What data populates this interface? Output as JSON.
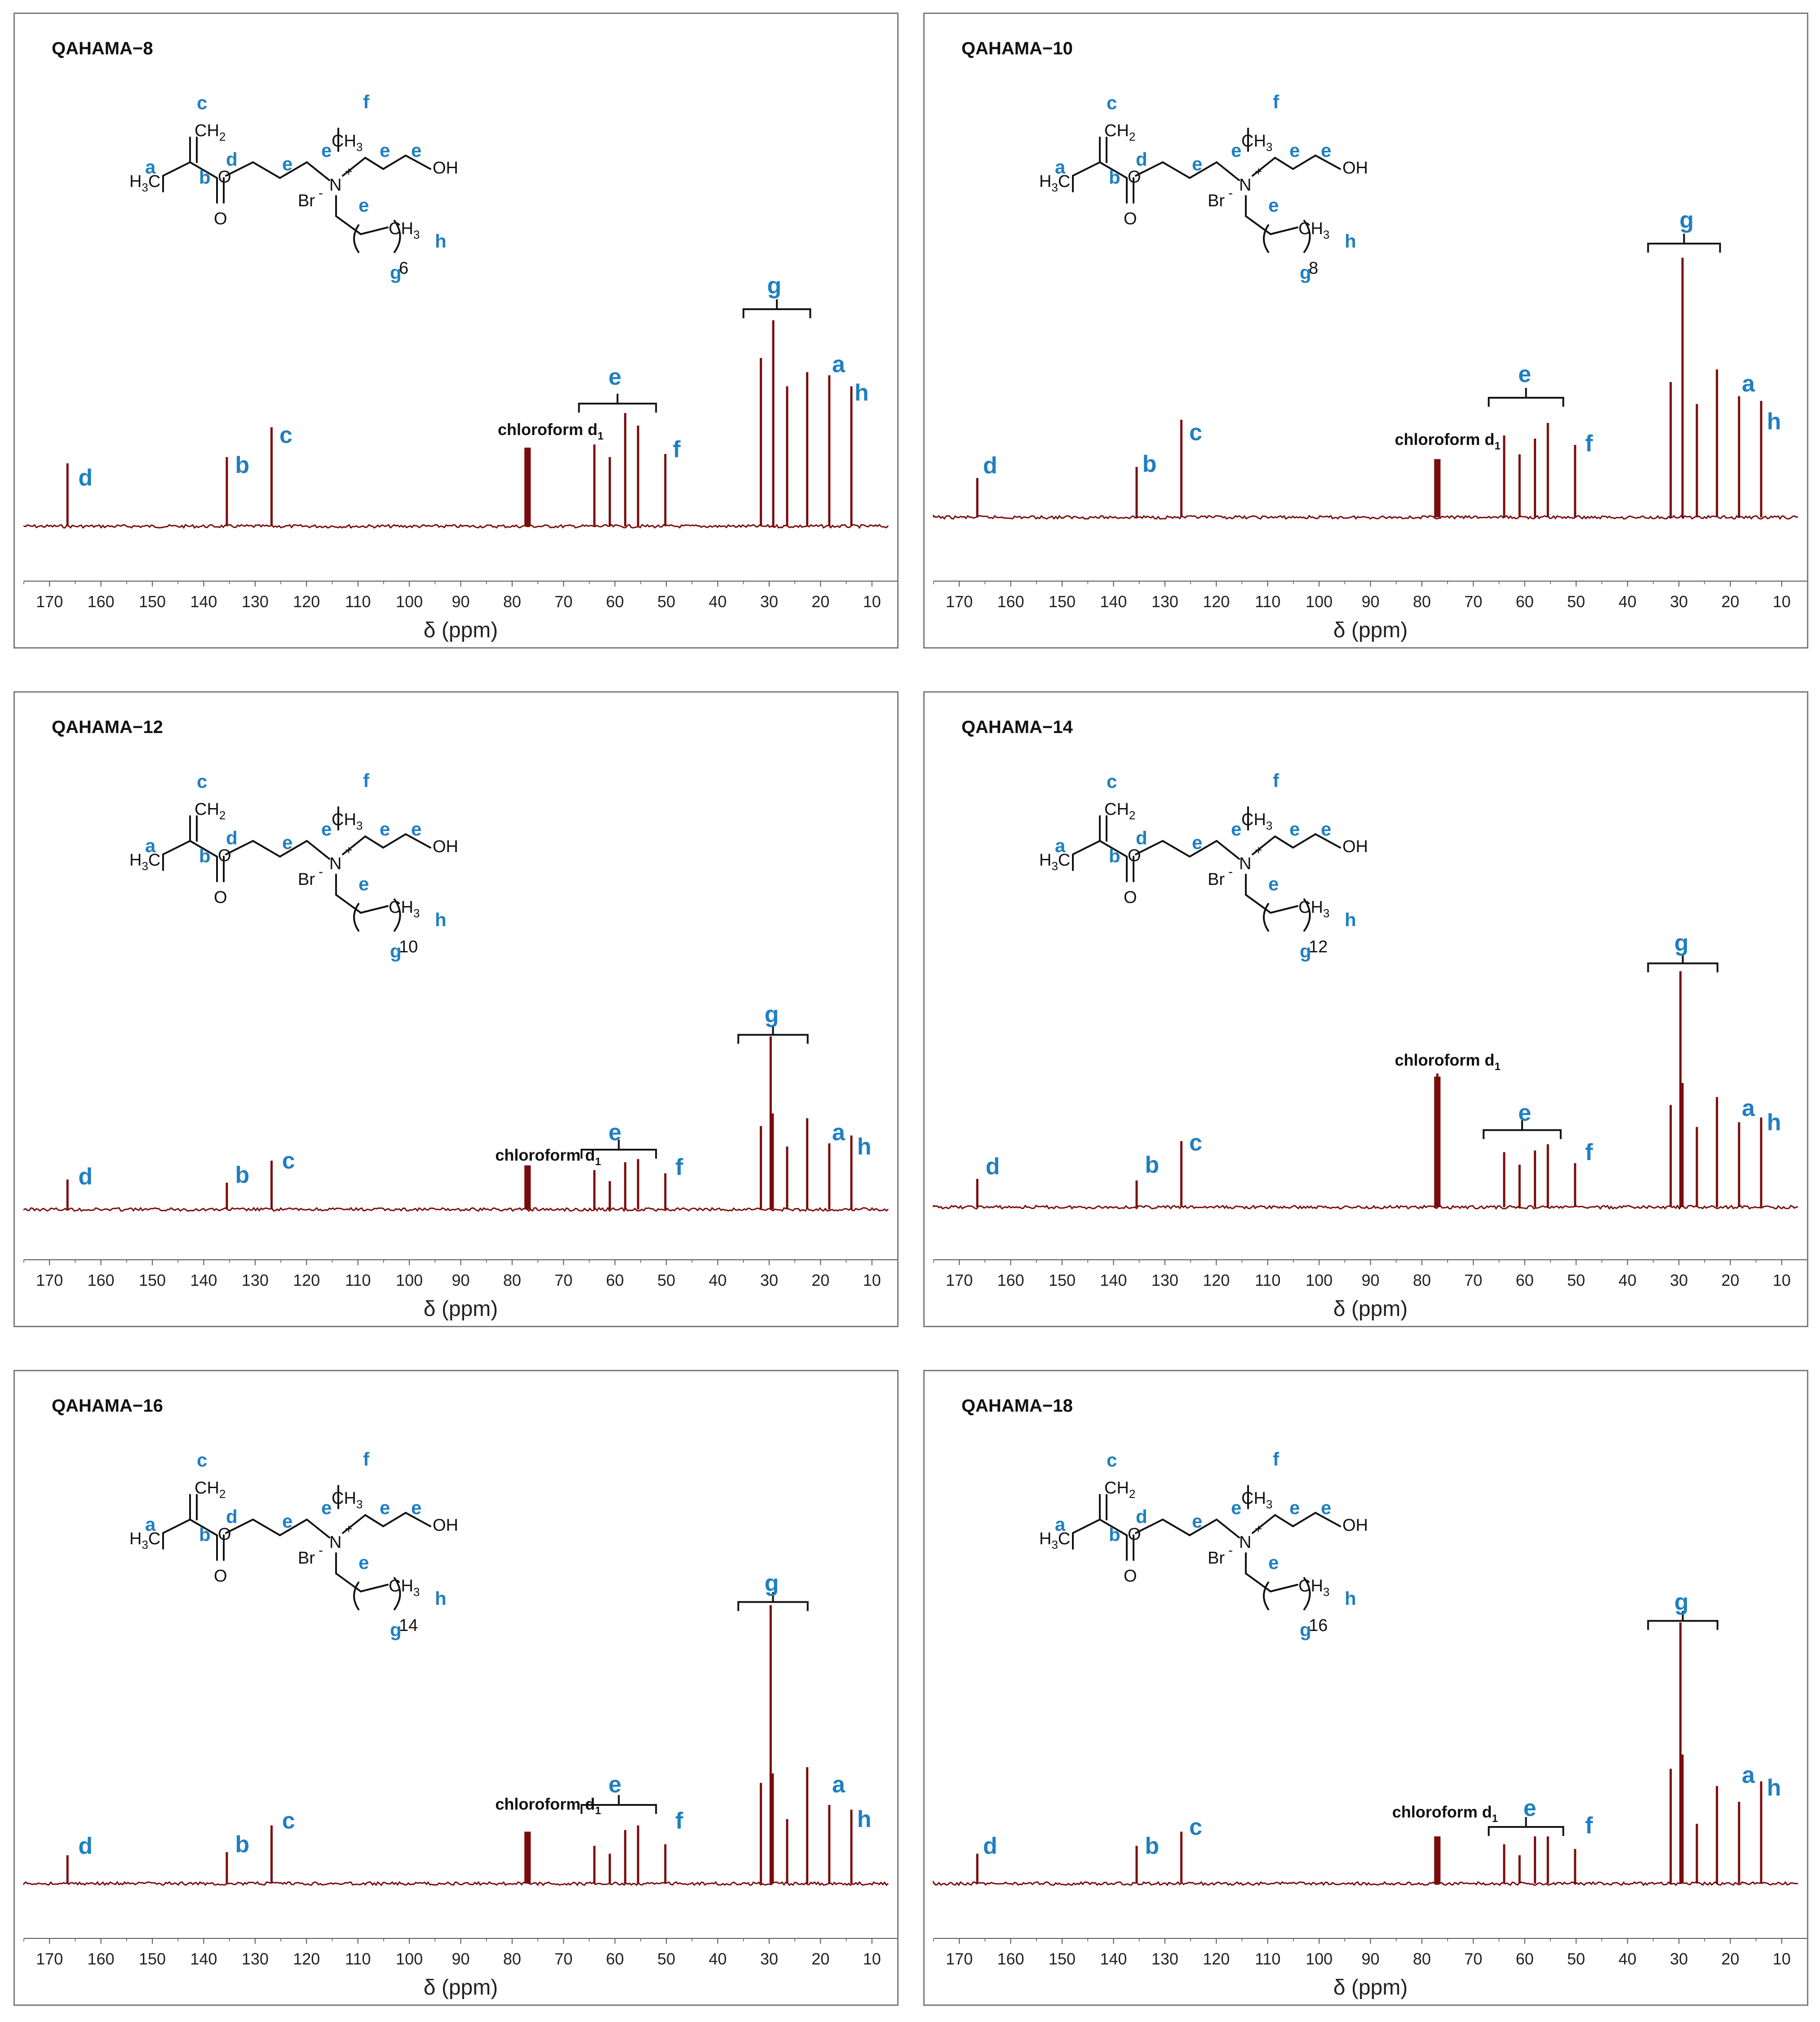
{
  "colors": {
    "spectrum": "#7b0c0c",
    "label": "#1f7fc0",
    "axis": "#555555",
    "structure": "#111111"
  },
  "structure_text": {
    "ch2": "CH",
    "ch2_sub": "2",
    "h3c_h": "H",
    "h3c_sub": "3",
    "h3c_c": "C",
    "o_ester": "O",
    "o_carbonyl": "O",
    "n": "N",
    "n_plus": "+",
    "ch3": "CH",
    "ch3_sub": "3",
    "br": "Br",
    "br_minus": "-",
    "oh": "OH",
    "ch3_tail": "CH",
    "ch3_tail_sub": "3"
  },
  "structure_labels": {
    "a": "a",
    "b": "b",
    "c": "c",
    "d": "d",
    "e": "e",
    "f": "f",
    "g": "g",
    "h": "h"
  },
  "chart_data": [
    {
      "type": "line",
      "title": "QAHAMA−8",
      "chain_repeat": "6",
      "xlabel": "δ (ppm)",
      "xlim": [
        175,
        5
      ],
      "xticks": [
        170,
        160,
        150,
        140,
        130,
        120,
        110,
        100,
        90,
        80,
        70,
        60,
        50,
        40,
        30,
        20,
        10
      ],
      "peaks": [
        {
          "x": 166.5,
          "h": 0.4
        },
        {
          "x": 135.5,
          "h": 0.44
        },
        {
          "x": 126.8,
          "h": 0.63
        },
        {
          "x": 77.4,
          "h": 0.5
        },
        {
          "x": 77.0,
          "h": 0.5
        },
        {
          "x": 76.6,
          "h": 0.5
        },
        {
          "x": 64.0,
          "h": 0.52
        },
        {
          "x": 61.0,
          "h": 0.44
        },
        {
          "x": 58.0,
          "h": 0.72
        },
        {
          "x": 55.5,
          "h": 0.64
        },
        {
          "x": 50.2,
          "h": 0.46
        },
        {
          "x": 31.6,
          "h": 1.07
        },
        {
          "x": 29.2,
          "h": 1.31
        },
        {
          "x": 26.5,
          "h": 0.89
        },
        {
          "x": 22.6,
          "h": 0.98
        },
        {
          "x": 18.3,
          "h": 0.96
        },
        {
          "x": 14.0,
          "h": 0.89
        }
      ],
      "annotations": [
        {
          "text": "chloroform d",
          "sub": "1",
          "x": 72.5,
          "y": 0.58
        },
        {
          "text": "a",
          "x": 16.5,
          "y": 0.98
        },
        {
          "text": "b",
          "x": 132.5,
          "y": 0.34
        },
        {
          "text": "c",
          "x": 124,
          "y": 0.53
        },
        {
          "text": "d",
          "x": 163,
          "y": 0.26
        },
        {
          "text": "e",
          "x": 60,
          "y": 0.9
        },
        {
          "text": "f",
          "x": 48,
          "y": 0.44
        },
        {
          "text": "g",
          "x": 29,
          "y": 1.48
        },
        {
          "text": "h",
          "x": 12,
          "y": 0.8
        }
      ],
      "brackets": [
        {
          "x1": 67,
          "x2": 52,
          "y": 0.78
        },
        {
          "x1": 35,
          "x2": 22,
          "y": 1.38
        }
      ]
    },
    {
      "type": "line",
      "title": "QAHAMA−10",
      "chain_repeat": "8",
      "xlabel": "δ (ppm)",
      "xlim": [
        175,
        5
      ],
      "xticks": [
        170,
        160,
        150,
        140,
        130,
        120,
        110,
        100,
        90,
        80,
        70,
        60,
        50,
        40,
        30,
        20,
        10
      ],
      "peaks": [
        {
          "x": 166.5,
          "h": 0.25
        },
        {
          "x": 135.5,
          "h": 0.32
        },
        {
          "x": 126.8,
          "h": 0.62
        },
        {
          "x": 77.4,
          "h": 0.37
        },
        {
          "x": 77.0,
          "h": 0.37
        },
        {
          "x": 76.6,
          "h": 0.37
        },
        {
          "x": 64.0,
          "h": 0.52
        },
        {
          "x": 61.0,
          "h": 0.4
        },
        {
          "x": 58.0,
          "h": 0.5
        },
        {
          "x": 55.5,
          "h": 0.6
        },
        {
          "x": 50.2,
          "h": 0.46
        },
        {
          "x": 31.6,
          "h": 0.86
        },
        {
          "x": 29.3,
          "h": 1.65
        },
        {
          "x": 26.5,
          "h": 0.72
        },
        {
          "x": 22.6,
          "h": 0.94
        },
        {
          "x": 18.3,
          "h": 0.77
        },
        {
          "x": 14.0,
          "h": 0.74
        }
      ],
      "annotations": [
        {
          "text": "chloroform d",
          "sub": "1",
          "x": 75,
          "y": 0.46
        },
        {
          "text": "a",
          "x": 16.5,
          "y": 0.8
        },
        {
          "text": "b",
          "x": 133,
          "y": 0.29
        },
        {
          "text": "c",
          "x": 124,
          "y": 0.49
        },
        {
          "text": "d",
          "x": 164,
          "y": 0.28
        },
        {
          "text": "e",
          "x": 60,
          "y": 0.86
        },
        {
          "text": "f",
          "x": 47.5,
          "y": 0.42
        },
        {
          "text": "g",
          "x": 28.5,
          "y": 1.84
        },
        {
          "text": "h",
          "x": 11.5,
          "y": 0.56
        }
      ],
      "brackets": [
        {
          "x1": 67,
          "x2": 52.5,
          "y": 0.76
        },
        {
          "x1": 36,
          "x2": 22,
          "y": 1.74
        }
      ]
    },
    {
      "type": "line",
      "title": "QAHAMA−12",
      "chain_repeat": "10",
      "xlabel": "δ (ppm)",
      "xlim": [
        175,
        5
      ],
      "xticks": [
        170,
        160,
        150,
        140,
        130,
        120,
        110,
        100,
        90,
        80,
        70,
        60,
        50,
        40,
        30,
        20,
        10
      ],
      "peaks": [
        {
          "x": 166.5,
          "h": 0.19
        },
        {
          "x": 135.5,
          "h": 0.17
        },
        {
          "x": 126.8,
          "h": 0.31
        },
        {
          "x": 77.4,
          "h": 0.28
        },
        {
          "x": 77.0,
          "h": 0.28
        },
        {
          "x": 76.6,
          "h": 0.28
        },
        {
          "x": 64.0,
          "h": 0.25
        },
        {
          "x": 61.0,
          "h": 0.18
        },
        {
          "x": 58.0,
          "h": 0.3
        },
        {
          "x": 55.5,
          "h": 0.32
        },
        {
          "x": 50.2,
          "h": 0.23
        },
        {
          "x": 31.6,
          "h": 0.53
        },
        {
          "x": 29.7,
          "h": 1.1
        },
        {
          "x": 29.3,
          "h": 0.61
        },
        {
          "x": 26.5,
          "h": 0.4
        },
        {
          "x": 22.6,
          "h": 0.58
        },
        {
          "x": 18.3,
          "h": 0.42
        },
        {
          "x": 14.0,
          "h": 0.47
        }
      ],
      "annotations": [
        {
          "text": "chloroform d",
          "sub": "1",
          "x": 73,
          "y": 0.31
        },
        {
          "text": "a",
          "x": 16.5,
          "y": 0.44
        },
        {
          "text": "b",
          "x": 132.5,
          "y": 0.17
        },
        {
          "text": "c",
          "x": 123.5,
          "y": 0.26
        },
        {
          "text": "d",
          "x": 163,
          "y": 0.16
        },
        {
          "text": "e",
          "x": 60,
          "y": 0.44
        },
        {
          "text": "f",
          "x": 47.5,
          "y": 0.22
        },
        {
          "text": "g",
          "x": 29.5,
          "y": 1.19
        },
        {
          "text": "h",
          "x": 11.5,
          "y": 0.35
        }
      ],
      "brackets": [
        {
          "x1": 66.5,
          "x2": 52,
          "y": 0.38
        },
        {
          "x1": 36,
          "x2": 22.5,
          "y": 1.11
        }
      ]
    },
    {
      "type": "line",
      "title": "QAHAMA−14",
      "chain_repeat": "12",
      "xlabel": "δ (ppm)",
      "xlim": [
        175,
        5
      ],
      "xticks": [
        170,
        160,
        150,
        140,
        130,
        120,
        110,
        100,
        90,
        80,
        70,
        60,
        50,
        40,
        30,
        20,
        10
      ],
      "peaks": [
        {
          "x": 166.5,
          "h": 0.18
        },
        {
          "x": 135.5,
          "h": 0.17
        },
        {
          "x": 126.8,
          "h": 0.42
        },
        {
          "x": 77.4,
          "h": 0.83
        },
        {
          "x": 77.0,
          "h": 0.85
        },
        {
          "x": 76.6,
          "h": 0.83
        },
        {
          "x": 64.0,
          "h": 0.35
        },
        {
          "x": 61.0,
          "h": 0.27
        },
        {
          "x": 58.0,
          "h": 0.36
        },
        {
          "x": 55.5,
          "h": 0.4
        },
        {
          "x": 50.2,
          "h": 0.28
        },
        {
          "x": 31.6,
          "h": 0.65
        },
        {
          "x": 29.7,
          "h": 1.5
        },
        {
          "x": 29.3,
          "h": 0.79
        },
        {
          "x": 26.5,
          "h": 0.51
        },
        {
          "x": 22.6,
          "h": 0.7
        },
        {
          "x": 18.3,
          "h": 0.54
        },
        {
          "x": 14.0,
          "h": 0.57
        }
      ],
      "annotations": [
        {
          "text": "chloroform d",
          "sub": "1",
          "x": 75,
          "y": 0.9
        },
        {
          "text": "a",
          "x": 16.5,
          "y": 0.58
        },
        {
          "text": "b",
          "x": 132.5,
          "y": 0.22
        },
        {
          "text": "c",
          "x": 124,
          "y": 0.36
        },
        {
          "text": "d",
          "x": 163.5,
          "y": 0.21
        },
        {
          "text": "e",
          "x": 60,
          "y": 0.55
        },
        {
          "text": "f",
          "x": 47.5,
          "y": 0.3
        },
        {
          "text": "g",
          "x": 29.5,
          "y": 1.63
        },
        {
          "text": "h",
          "x": 11.5,
          "y": 0.49
        }
      ],
      "brackets": [
        {
          "x1": 68,
          "x2": 53,
          "y": 0.49
        },
        {
          "x1": 36,
          "x2": 22.5,
          "y": 1.55
        }
      ]
    },
    {
      "type": "line",
      "title": "QAHAMA−16",
      "chain_repeat": "14",
      "xlabel": "δ (ppm)",
      "xlim": [
        175,
        5
      ],
      "xticks": [
        170,
        160,
        150,
        140,
        130,
        120,
        110,
        100,
        90,
        80,
        70,
        60,
        50,
        40,
        30,
        20,
        10
      ],
      "peaks": [
        {
          "x": 166.5,
          "h": 0.18
        },
        {
          "x": 135.5,
          "h": 0.2
        },
        {
          "x": 126.8,
          "h": 0.37
        },
        {
          "x": 77.4,
          "h": 0.33
        },
        {
          "x": 77.0,
          "h": 0.33
        },
        {
          "x": 76.6,
          "h": 0.33
        },
        {
          "x": 64.0,
          "h": 0.24
        },
        {
          "x": 61.0,
          "h": 0.19
        },
        {
          "x": 58.0,
          "h": 0.34
        },
        {
          "x": 55.5,
          "h": 0.37
        },
        {
          "x": 50.2,
          "h": 0.25
        },
        {
          "x": 31.6,
          "h": 0.64
        },
        {
          "x": 29.7,
          "h": 1.77
        },
        {
          "x": 29.3,
          "h": 0.7
        },
        {
          "x": 26.5,
          "h": 0.41
        },
        {
          "x": 22.6,
          "h": 0.74
        },
        {
          "x": 18.3,
          "h": 0.5
        },
        {
          "x": 14.0,
          "h": 0.47
        }
      ],
      "annotations": [
        {
          "text": "chloroform d",
          "sub": "1",
          "x": 73,
          "y": 0.47
        },
        {
          "text": "a",
          "x": 16.5,
          "y": 0.58
        },
        {
          "text": "b",
          "x": 132.5,
          "y": 0.2
        },
        {
          "text": "c",
          "x": 123.5,
          "y": 0.35
        },
        {
          "text": "d",
          "x": 163,
          "y": 0.19
        },
        {
          "text": "e",
          "x": 60,
          "y": 0.58
        },
        {
          "text": "f",
          "x": 47.5,
          "y": 0.35
        },
        {
          "text": "g",
          "x": 29.5,
          "y": 1.86
        },
        {
          "text": "h",
          "x": 11.5,
          "y": 0.36
        }
      ],
      "brackets": [
        {
          "x1": 66.5,
          "x2": 52,
          "y": 0.5
        },
        {
          "x1": 36,
          "x2": 22.5,
          "y": 1.79
        }
      ]
    },
    {
      "type": "line",
      "title": "QAHAMA−18",
      "chain_repeat": "16",
      "xlabel": "δ (ppm)",
      "xlim": [
        175,
        5
      ],
      "xticks": [
        170,
        160,
        150,
        140,
        130,
        120,
        110,
        100,
        90,
        80,
        70,
        60,
        50,
        40,
        30,
        20,
        10
      ],
      "peaks": [
        {
          "x": 166.5,
          "h": 0.19
        },
        {
          "x": 135.5,
          "h": 0.24
        },
        {
          "x": 126.8,
          "h": 0.33
        },
        {
          "x": 77.4,
          "h": 0.3
        },
        {
          "x": 77.0,
          "h": 0.3
        },
        {
          "x": 76.6,
          "h": 0.3
        },
        {
          "x": 64.0,
          "h": 0.25
        },
        {
          "x": 61.0,
          "h": 0.18
        },
        {
          "x": 58.0,
          "h": 0.3
        },
        {
          "x": 55.5,
          "h": 0.3
        },
        {
          "x": 50.2,
          "h": 0.22
        },
        {
          "x": 31.6,
          "h": 0.73
        },
        {
          "x": 29.7,
          "h": 1.66
        },
        {
          "x": 29.3,
          "h": 0.82
        },
        {
          "x": 26.5,
          "h": 0.38
        },
        {
          "x": 22.6,
          "h": 0.62
        },
        {
          "x": 18.3,
          "h": 0.52
        },
        {
          "x": 14.0,
          "h": 0.65
        }
      ],
      "annotations": [
        {
          "text": "chloroform d",
          "sub": "1",
          "x": 75.5,
          "y": 0.42
        },
        {
          "text": "a",
          "x": 16.5,
          "y": 0.64
        },
        {
          "text": "b",
          "x": 132.5,
          "y": 0.19
        },
        {
          "text": "c",
          "x": 124,
          "y": 0.31
        },
        {
          "text": "d",
          "x": 164,
          "y": 0.19
        },
        {
          "text": "e",
          "x": 59,
          "y": 0.43
        },
        {
          "text": "f",
          "x": 47.5,
          "y": 0.32
        },
        {
          "text": "g",
          "x": 29.5,
          "y": 1.74
        },
        {
          "text": "h",
          "x": 11.5,
          "y": 0.56
        }
      ],
      "brackets": [
        {
          "x1": 67,
          "x2": 52.5,
          "y": 0.36
        },
        {
          "x1": 36,
          "x2": 22.5,
          "y": 1.67
        }
      ]
    }
  ]
}
